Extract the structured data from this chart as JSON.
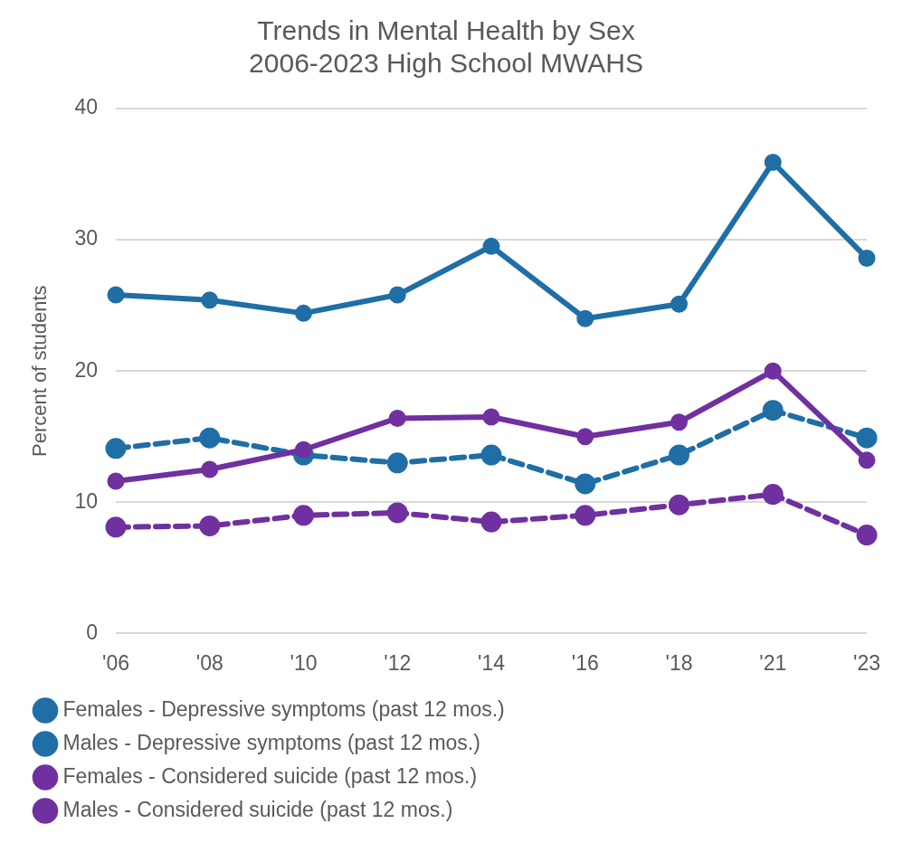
{
  "chart_data": {
    "type": "line",
    "title": [
      "Trends in Mental Health by Sex",
      "2006-2023 High School MWAHS"
    ],
    "ylabel": "Percent of students",
    "categories": [
      "'06",
      "'08",
      "'10",
      "'12",
      "'14",
      "'16",
      "'18",
      "'21",
      "'23"
    ],
    "series": [
      {
        "name": "Females - Depressive symptoms (past 12 mos.)",
        "color": "#1f6ea6",
        "line_style": "solid",
        "values": [
          25.8,
          25.4,
          24.4,
          25.8,
          29.5,
          24.0,
          25.1,
          35.9,
          28.6
        ]
      },
      {
        "name": "Males - Depressive symptoms (past 12 mos.)",
        "color": "#1f6ea6",
        "line_style": "dashed",
        "values": [
          14.1,
          14.9,
          13.6,
          13.0,
          13.6,
          11.4,
          13.6,
          17.0,
          14.9
        ]
      },
      {
        "name": "Females - Considered suicide (past 12 mos.)",
        "color": "#7030a0",
        "line_style": "solid",
        "values": [
          11.6,
          12.5,
          14.0,
          16.4,
          16.5,
          15.0,
          16.1,
          20.0,
          13.2
        ]
      },
      {
        "name": "Males - Considered suicide (past 12 mos.)",
        "color": "#7030a0",
        "line_style": "dashed",
        "values": [
          8.1,
          8.2,
          9.0,
          9.2,
          8.5,
          9.0,
          9.8,
          10.6,
          7.5
        ]
      }
    ],
    "ylim": [
      0,
      40
    ],
    "yticks": [
      0,
      10,
      20,
      30,
      40
    ],
    "grid": "y",
    "legend": "bottom",
    "marker": "circle"
  }
}
